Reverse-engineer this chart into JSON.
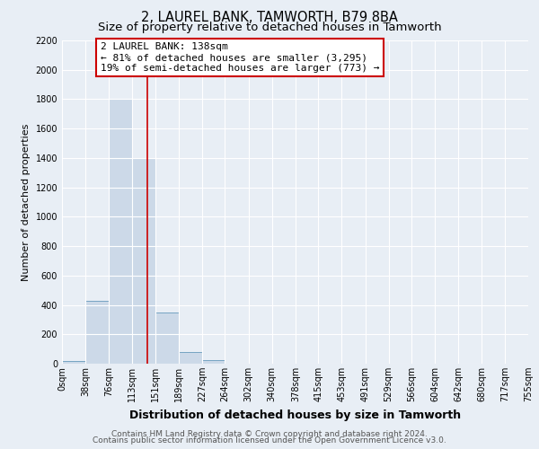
{
  "title": "2, LAUREL BANK, TAMWORTH, B79 8BA",
  "subtitle": "Size of property relative to detached houses in Tamworth",
  "xlabel": "Distribution of detached houses by size in Tamworth",
  "ylabel": "Number of detached properties",
  "bar_edges": [
    0,
    38,
    76,
    113,
    151,
    189,
    227,
    264,
    302,
    340,
    378,
    415,
    453,
    491,
    529,
    566,
    604,
    642,
    680,
    717,
    755
  ],
  "bar_heights": [
    20,
    430,
    1800,
    1400,
    350,
    80,
    25,
    0,
    0,
    0,
    0,
    0,
    0,
    0,
    0,
    0,
    0,
    0,
    0,
    0
  ],
  "bar_color": "#ccd9e8",
  "bar_edgecolor": "#6699bb",
  "property_value": 138,
  "vline_color": "#cc0000",
  "annotation_text": "2 LAUREL BANK: 138sqm\n← 81% of detached houses are smaller (3,295)\n19% of semi-detached houses are larger (773) →",
  "annotation_box_edgecolor": "#cc0000",
  "ylim": [
    0,
    2200
  ],
  "yticks": [
    0,
    200,
    400,
    600,
    800,
    1000,
    1200,
    1400,
    1600,
    1800,
    2000,
    2200
  ],
  "xtick_labels": [
    "0sqm",
    "38sqm",
    "76sqm",
    "113sqm",
    "151sqm",
    "189sqm",
    "227sqm",
    "264sqm",
    "302sqm",
    "340sqm",
    "378sqm",
    "415sqm",
    "453sqm",
    "491sqm",
    "529sqm",
    "566sqm",
    "604sqm",
    "642sqm",
    "680sqm",
    "717sqm",
    "755sqm"
  ],
  "footer_line1": "Contains HM Land Registry data © Crown copyright and database right 2024.",
  "footer_line2": "Contains public sector information licensed under the Open Government Licence v3.0.",
  "bg_color": "#e8eef5",
  "plot_bg_color": "#e8eef5",
  "grid_color": "#ffffff",
  "title_fontsize": 10.5,
  "subtitle_fontsize": 9.5,
  "xlabel_fontsize": 9,
  "ylabel_fontsize": 8,
  "tick_fontsize": 7,
  "annot_fontsize": 8,
  "footer_fontsize": 6.5
}
